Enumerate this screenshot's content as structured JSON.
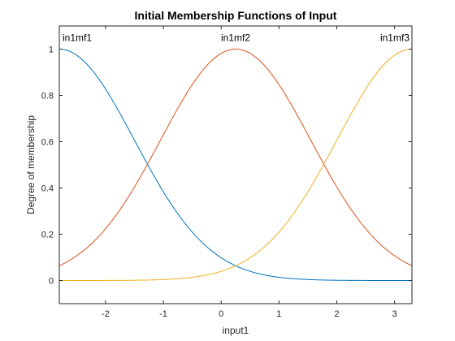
{
  "chart_data": {
    "type": "line",
    "title": "Initial Membership Functions of Input",
    "xlabel": "input1",
    "ylabel": "Degree of membership",
    "xlim": [
      -2.8,
      3.3
    ],
    "ylim": [
      -0.1,
      1.1
    ],
    "xticks": [
      -2,
      -1,
      0,
      1,
      2,
      3
    ],
    "xtick_labels": [
      "-2",
      "-1",
      "0",
      "1",
      "2",
      "3"
    ],
    "yticks": [
      0,
      0.2,
      0.4,
      0.6,
      0.8,
      1
    ],
    "ytick_labels": [
      "0",
      "0.2",
      "0.4",
      "0.6",
      "0.8",
      "1"
    ],
    "grid": false,
    "series": [
      {
        "name": "in1mf1",
        "color": "#0072BD",
        "shape": "gaussian",
        "center": -2.8,
        "sigma": 1.3,
        "x": [
          -2.8,
          -2.5,
          -2.0,
          -1.5,
          -1.25,
          -1.0,
          -0.5,
          0.0,
          0.25,
          0.5,
          1.0,
          1.5,
          2.0,
          2.5,
          3.0,
          3.3
        ],
        "y": [
          1.0,
          0.97,
          0.83,
          0.61,
          0.49,
          0.38,
          0.19,
          0.08,
          0.05,
          0.03,
          0.01,
          0.0,
          0.0,
          0.0,
          0.0,
          0.0
        ]
      },
      {
        "name": "in1mf2",
        "color": "#D95319",
        "shape": "gaussian",
        "center": 0.25,
        "sigma": 1.3,
        "x": [
          -2.8,
          -2.5,
          -2.0,
          -1.5,
          -1.25,
          -1.0,
          -0.5,
          0.0,
          0.25,
          0.5,
          1.0,
          1.5,
          1.75,
          2.0,
          2.5,
          3.0,
          3.3
        ],
        "y": [
          0.06,
          0.11,
          0.22,
          0.4,
          0.51,
          0.63,
          0.85,
          0.98,
          1.0,
          0.98,
          0.85,
          0.63,
          0.51,
          0.4,
          0.22,
          0.11,
          0.06
        ]
      },
      {
        "name": "in1mf3",
        "color": "#EDB120",
        "shape": "gaussian",
        "center": 3.3,
        "sigma": 1.3,
        "x": [
          -2.8,
          -2.0,
          -1.0,
          -0.5,
          0.0,
          0.25,
          0.5,
          1.0,
          1.5,
          1.75,
          2.0,
          2.5,
          3.0,
          3.3
        ],
        "y": [
          0.0,
          0.0,
          0.0,
          0.01,
          0.04,
          0.06,
          0.1,
          0.21,
          0.38,
          0.49,
          0.61,
          0.83,
          0.97,
          1.0
        ]
      }
    ],
    "annotations": [
      {
        "text": "in1mf1",
        "x": -2.8,
        "y": 1.05
      },
      {
        "text": "in1mf2",
        "x": 0.25,
        "y": 1.05
      },
      {
        "text": "in1mf3",
        "x": 3.3,
        "y": 1.05
      }
    ]
  }
}
